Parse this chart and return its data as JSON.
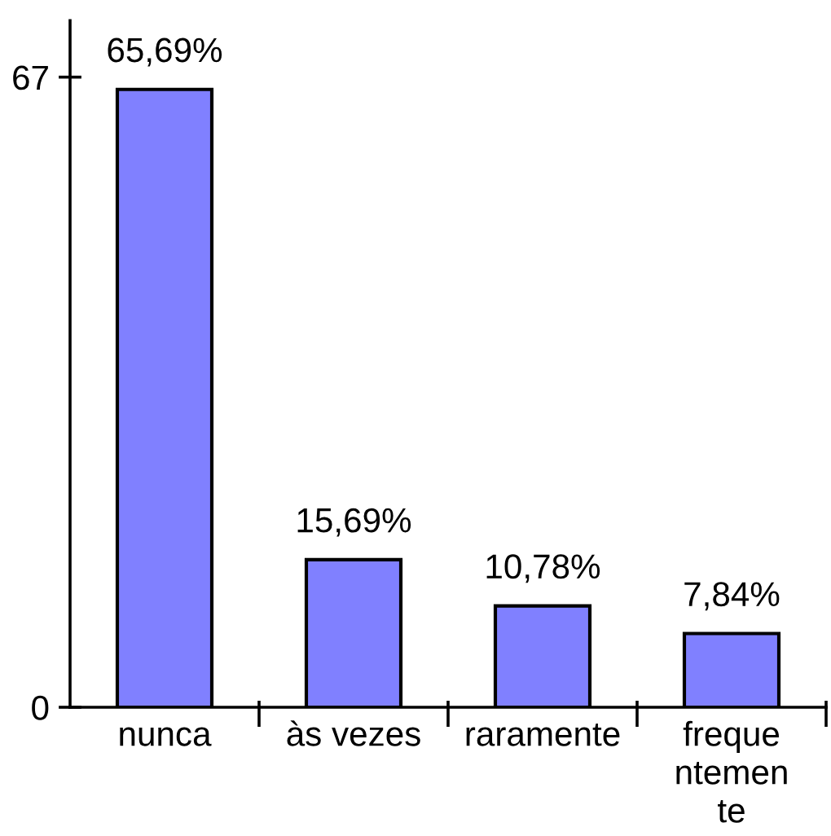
{
  "chart_data": {
    "type": "bar",
    "categories": [
      "nunca",
      "às vezes",
      "raramente",
      "freque\nntemen\nte"
    ],
    "values": [
      65.69,
      15.69,
      10.78,
      7.84
    ],
    "value_labels": [
      "65,69%",
      "15,69%",
      "10,78%",
      "7,84%"
    ],
    "color": "#8080ff",
    "ylim": [
      0,
      73
    ],
    "yticks": [
      0,
      67
    ],
    "grid": false
  }
}
